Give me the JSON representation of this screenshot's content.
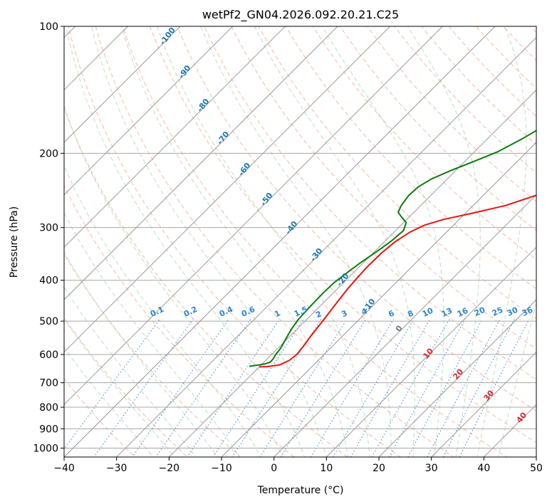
{
  "chart_data": {
    "type": "line",
    "subtype": "skew-t log-p diagram",
    "title": "wetPf2_GN04.2026.092.20.21.C25",
    "xlabel": "Temperature (°C)",
    "ylabel": "Pressure (hPa)",
    "xlim": [
      -40,
      50
    ],
    "ylim": [
      1050,
      100
    ],
    "x_ticks": [
      -40,
      -30,
      -20,
      -10,
      0,
      10,
      20,
      30,
      40,
      50
    ],
    "y_ticks": [
      1000,
      900,
      800,
      700,
      600,
      500,
      400,
      300,
      200,
      100
    ],
    "grid": true,
    "series": [
      {
        "name": "temperature",
        "color": "#e8140c",
        "points": [
          [
            -20.0,
            642
          ],
          [
            -18.5,
            641
          ],
          [
            -16.5,
            635
          ],
          [
            -15.5,
            620
          ],
          [
            -15.2,
            600
          ],
          [
            -15.5,
            575
          ],
          [
            -16.0,
            545
          ],
          [
            -16.5,
            510
          ],
          [
            -17.0,
            478
          ],
          [
            -17.5,
            450
          ],
          [
            -18.0,
            420
          ],
          [
            -18.3,
            395
          ],
          [
            -18.5,
            370
          ],
          [
            -18.4,
            345
          ],
          [
            -18.0,
            325
          ],
          [
            -17.0,
            308
          ],
          [
            -15.5,
            296
          ],
          [
            -13.0,
            287
          ],
          [
            -9.0,
            278
          ],
          [
            -3.8,
            266
          ],
          [
            0.5,
            250
          ],
          [
            3.8,
            234
          ],
          [
            6.6,
            219
          ],
          [
            9.4,
            203
          ],
          [
            12.4,
            188
          ],
          [
            15.4,
            174
          ],
          [
            18.4,
            161
          ],
          [
            21.4,
            148
          ],
          [
            24.2,
            136
          ],
          [
            26.6,
            125
          ],
          [
            28.6,
            115
          ],
          [
            30.6,
            107
          ],
          [
            32.2,
            101
          ],
          [
            32.6,
            100
          ]
        ]
      },
      {
        "name": "dewpoint",
        "color": "#0a7d0a",
        "points": [
          [
            -22.0,
            640
          ],
          [
            -21.0,
            637
          ],
          [
            -19.5,
            632
          ],
          [
            -18.8,
            625
          ],
          [
            -18.9,
            613
          ],
          [
            -19.2,
            600
          ],
          [
            -19.5,
            578
          ],
          [
            -20.2,
            553
          ],
          [
            -21.0,
            525
          ],
          [
            -21.6,
            495
          ],
          [
            -21.8,
            460
          ],
          [
            -21.9,
            430
          ],
          [
            -21.8,
            405
          ],
          [
            -21.2,
            383
          ],
          [
            -20.5,
            362
          ],
          [
            -19.6,
            342
          ],
          [
            -18.8,
            322
          ],
          [
            -18.5,
            305
          ],
          [
            -19.5,
            292
          ],
          [
            -21.5,
            283
          ],
          [
            -23.0,
            276
          ],
          [
            -23.7,
            266
          ],
          [
            -24.2,
            252
          ],
          [
            -24.0,
            240
          ],
          [
            -23.0,
            230
          ],
          [
            -21.0,
            220
          ],
          [
            -18.0,
            208
          ],
          [
            -15.5,
            198
          ],
          [
            -13.4,
            185
          ],
          [
            -11.6,
            172
          ],
          [
            -9.4,
            160
          ],
          [
            -6.8,
            148
          ],
          [
            -4.2,
            136
          ],
          [
            -1.4,
            125
          ],
          [
            1.4,
            115
          ],
          [
            4.2,
            107
          ],
          [
            6.2,
            101
          ],
          [
            6.6,
            100
          ]
        ]
      }
    ],
    "background_lines": {
      "isotherms": "solid grey, skewed 45°",
      "dry_adiabats": "dashed orange-red",
      "moist_adiabats": "dashed green",
      "mixing_ratio": "dotted blue"
    },
    "dry_adiabat_labels": [
      "-100",
      "-90",
      "-80",
      "-70",
      "-60",
      "-50",
      "-40",
      "-30",
      "-20",
      "-10"
    ],
    "mixing_ratio_labels": [
      "0.1",
      "0.2",
      "0.4",
      "0.6",
      "1",
      "1.5",
      "2",
      "3",
      "4",
      "6",
      "8",
      "10",
      "13",
      "16",
      "20",
      "25",
      "30",
      "36"
    ],
    "moist_adiabat_labels": [
      "0",
      "10",
      "20",
      "30",
      "40"
    ]
  }
}
